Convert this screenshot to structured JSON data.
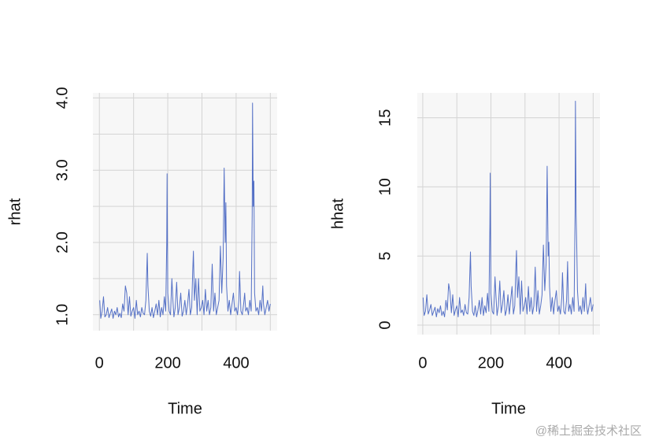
{
  "chart_data": [
    {
      "type": "line",
      "xlabel": "Time",
      "ylabel": "rhat",
      "color": "#5470c6",
      "xlim": [
        -19,
        520
      ],
      "ylim": [
        0.78,
        4.07
      ],
      "xticks": [
        0,
        200,
        400
      ],
      "xgrid": [
        0,
        100,
        200,
        300,
        400,
        500
      ],
      "yticks": [
        {
          "value": 1,
          "label": "1.0"
        },
        {
          "value": 2,
          "label": "2.0"
        },
        {
          "value": 3,
          "label": "3.0"
        },
        {
          "value": 4,
          "label": "4.0"
        }
      ],
      "ygrid": [
        1,
        1.5,
        2,
        2.5,
        3,
        3.5,
        4
      ],
      "grid": true,
      "x": [
        1,
        4,
        8,
        12,
        16,
        20,
        24,
        28,
        32,
        36,
        40,
        44,
        48,
        52,
        56,
        60,
        64,
        68,
        72,
        76,
        80,
        84,
        88,
        92,
        96,
        100,
        104,
        108,
        112,
        116,
        120,
        124,
        128,
        132,
        136,
        140,
        142,
        146,
        150,
        154,
        158,
        162,
        166,
        170,
        174,
        178,
        182,
        186,
        190,
        194,
        197,
        198,
        200,
        204,
        208,
        212,
        215,
        218,
        222,
        226,
        230,
        234,
        238,
        242,
        246,
        250,
        254,
        258,
        262,
        266,
        270,
        273,
        275,
        278,
        282,
        286,
        290,
        294,
        298,
        302,
        306,
        310,
        314,
        318,
        322,
        326,
        330,
        334,
        338,
        342,
        346,
        350,
        354,
        358,
        362,
        365,
        368,
        370,
        372,
        376,
        380,
        384,
        388,
        392,
        396,
        400,
        404,
        408,
        410,
        414,
        418,
        422,
        425,
        428,
        432,
        436,
        440,
        444,
        447,
        448,
        450,
        452,
        454,
        458,
        462,
        466,
        470,
        474,
        478,
        480,
        484,
        488,
        492,
        496,
        500
      ],
      "values": [
        1.2,
        0.95,
        1.05,
        1.25,
        0.97,
        1.0,
        1.1,
        0.96,
        1.02,
        1.08,
        0.95,
        1.05,
        1.0,
        1.1,
        0.97,
        1.02,
        0.96,
        1.15,
        1.05,
        1.4,
        1.3,
        1.0,
        1.25,
        0.98,
        1.05,
        1.1,
        0.95,
        1.2,
        1.0,
        1.05,
        0.97,
        1.1,
        1.02,
        1.0,
        1.2,
        1.85,
        1.4,
        1.05,
        0.98,
        1.1,
        0.96,
        1.05,
        1.15,
        1.0,
        1.2,
        0.97,
        1.1,
        1.0,
        1.25,
        1.05,
        2.0,
        2.95,
        1.3,
        1.05,
        1.0,
        1.5,
        1.2,
        0.97,
        1.1,
        1.45,
        1.0,
        1.1,
        1.3,
        0.98,
        1.05,
        1.2,
        1.0,
        1.15,
        1.35,
        1.0,
        1.1,
        1.6,
        1.88,
        1.2,
        1.5,
        1.0,
        1.5,
        1.05,
        1.1,
        1.2,
        1.0,
        1.35,
        1.05,
        1.2,
        1.0,
        1.1,
        1.7,
        1.05,
        1.3,
        1.0,
        1.1,
        1.2,
        1.95,
        1.3,
        1.8,
        3.03,
        2.0,
        2.55,
        1.4,
        1.05,
        1.2,
        1.0,
        1.15,
        1.3,
        1.05,
        1.1,
        1.0,
        1.2,
        1.6,
        1.05,
        1.0,
        1.15,
        1.3,
        1.05,
        1.1,
        1.0,
        1.2,
        1.05,
        2.4,
        3.93,
        2.5,
        2.85,
        1.3,
        1.05,
        1.1,
        1.0,
        1.2,
        1.05,
        1.4,
        1.15,
        1.0,
        1.1,
        1.2,
        1.05,
        1.15
      ]
    },
    {
      "type": "line",
      "xlabel": "Time",
      "ylabel": "hhat",
      "color": "#5470c6",
      "xlim": [
        -16,
        520
      ],
      "ylim": [
        -0.68,
        16.8
      ],
      "xticks": [
        0,
        200,
        400
      ],
      "xgrid": [
        0,
        100,
        200,
        300,
        400,
        500
      ],
      "yticks": [
        0,
        5,
        10,
        15
      ],
      "ygrid": [
        0,
        5,
        10,
        15
      ],
      "grid": true,
      "x": [
        1,
        4,
        8,
        12,
        16,
        20,
        24,
        28,
        32,
        36,
        40,
        44,
        48,
        52,
        56,
        60,
        64,
        68,
        72,
        76,
        80,
        84,
        88,
        92,
        96,
        100,
        104,
        108,
        112,
        116,
        120,
        124,
        128,
        132,
        136,
        140,
        142,
        146,
        150,
        154,
        158,
        162,
        166,
        170,
        174,
        178,
        182,
        186,
        190,
        194,
        197,
        198,
        200,
        204,
        208,
        212,
        215,
        218,
        222,
        226,
        230,
        234,
        238,
        242,
        246,
        250,
        254,
        258,
        262,
        266,
        270,
        273,
        275,
        278,
        282,
        286,
        290,
        294,
        298,
        302,
        306,
        310,
        314,
        318,
        322,
        326,
        330,
        334,
        338,
        342,
        346,
        350,
        354,
        358,
        362,
        365,
        368,
        370,
        372,
        376,
        380,
        384,
        388,
        392,
        396,
        400,
        404,
        408,
        410,
        414,
        418,
        422,
        425,
        428,
        432,
        436,
        440,
        444,
        447,
        448,
        450,
        452,
        454,
        458,
        462,
        466,
        470,
        474,
        478,
        480,
        484,
        488,
        492,
        496,
        500
      ],
      "values": [
        2.0,
        0.7,
        1.0,
        2.2,
        0.8,
        1.1,
        1.5,
        0.7,
        1.0,
        1.3,
        0.6,
        1.2,
        0.9,
        1.4,
        0.7,
        1.0,
        0.6,
        1.8,
        1.1,
        3.0,
        2.4,
        0.9,
        2.2,
        0.7,
        1.1,
        1.4,
        0.6,
        2.0,
        0.9,
        1.1,
        0.7,
        1.5,
        0.9,
        0.8,
        2.0,
        5.3,
        2.8,
        1.0,
        0.7,
        1.4,
        0.6,
        1.1,
        1.8,
        0.8,
        2.0,
        0.7,
        1.4,
        0.9,
        2.3,
        1.0,
        7.3,
        11.0,
        2.3,
        1.0,
        0.8,
        3.5,
        2.0,
        0.7,
        1.4,
        3.2,
        0.9,
        1.5,
        2.5,
        0.7,
        1.1,
        2.2,
        0.8,
        1.8,
        2.8,
        0.8,
        1.4,
        4.0,
        5.4,
        2.0,
        3.5,
        0.8,
        3.2,
        1.0,
        1.4,
        2.0,
        0.8,
        2.8,
        1.0,
        2.0,
        0.8,
        1.4,
        4.2,
        1.0,
        2.5,
        0.8,
        1.4,
        2.2,
        5.8,
        2.5,
        4.5,
        11.5,
        5.0,
        6.0,
        2.8,
        1.0,
        2.0,
        0.8,
        1.8,
        2.5,
        1.0,
        1.4,
        0.8,
        2.0,
        3.8,
        1.0,
        0.8,
        1.8,
        4.6,
        1.0,
        1.5,
        0.8,
        2.0,
        1.0,
        8.3,
        16.2,
        8.0,
        5.5,
        2.5,
        1.0,
        1.4,
        0.8,
        2.0,
        1.0,
        3.0,
        1.6,
        0.8,
        1.4,
        2.0,
        1.0,
        1.5
      ]
    }
  ],
  "watermark": "@稀土掘金技术社区"
}
